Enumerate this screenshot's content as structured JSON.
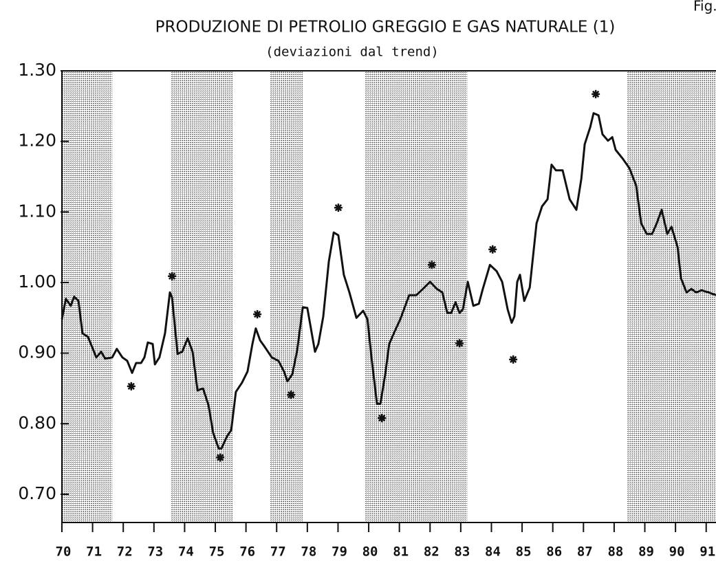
{
  "chart_data": {
    "type": "line",
    "title": "PRODUZIONE DI PETROLIO GREGGIO E GAS NATURALE (1)",
    "subtitle": "(deviazioni dal trend)",
    "annotation": "Fig.",
    "color": "#111111",
    "xlim": [
      70,
      91.32
    ],
    "ylim": [
      0.66,
      1.3
    ],
    "xticks": [
      70,
      71,
      72,
      73,
      74,
      75,
      76,
      77,
      78,
      79,
      80,
      81,
      82,
      83,
      84,
      85,
      86,
      87,
      88,
      89,
      90,
      91
    ],
    "yticks": [
      {
        "value": 0.7,
        "label": "0.70"
      },
      {
        "value": 0.8,
        "label": "0.80"
      },
      {
        "value": 0.9,
        "label": "0.90"
      },
      {
        "value": 1.0,
        "label": "1.00"
      },
      {
        "value": 1.1,
        "label": "1.10"
      },
      {
        "value": 1.2,
        "label": "1.20"
      },
      {
        "value": 1.3,
        "label": "1.30"
      }
    ],
    "shaded_periods": [
      [
        70.0,
        71.64
      ],
      [
        73.54,
        75.56
      ],
      [
        76.79,
        77.85
      ],
      [
        79.87,
        83.21
      ],
      [
        88.43,
        91.32
      ]
    ],
    "x": [
      70.0,
      70.13,
      70.29,
      70.4,
      70.54,
      70.67,
      70.85,
      71.12,
      71.28,
      71.41,
      71.64,
      71.79,
      71.97,
      72.13,
      72.29,
      72.42,
      72.58,
      72.69,
      72.8,
      72.96,
      73.03,
      73.18,
      73.36,
      73.52,
      73.59,
      73.77,
      73.92,
      74.1,
      74.26,
      74.42,
      74.6,
      74.78,
      74.93,
      75.11,
      75.2,
      75.38,
      75.52,
      75.67,
      75.87,
      76.05,
      76.21,
      76.32,
      76.46,
      76.61,
      76.84,
      77.06,
      77.24,
      77.35,
      77.51,
      77.67,
      77.85,
      78.0,
      78.25,
      78.36,
      78.52,
      78.7,
      78.86,
      79.01,
      79.19,
      79.37,
      79.6,
      79.82,
      79.96,
      80.09,
      80.27,
      80.38,
      80.54,
      80.67,
      80.87,
      81.03,
      81.32,
      81.55,
      81.77,
      82.0,
      82.22,
      82.4,
      82.56,
      82.69,
      82.83,
      82.96,
      83.07,
      83.23,
      83.41,
      83.59,
      83.72,
      83.95,
      84.17,
      84.35,
      84.53,
      84.66,
      84.75,
      84.84,
      84.93,
      85.07,
      85.25,
      85.47,
      85.65,
      85.83,
      85.96,
      86.1,
      86.32,
      86.55,
      86.77,
      86.93,
      87.04,
      87.22,
      87.33,
      87.49,
      87.62,
      87.8,
      87.94,
      88.05,
      88.27,
      88.5,
      88.72,
      88.88,
      89.06,
      89.24,
      89.39,
      89.55,
      89.73,
      89.87,
      90.07,
      90.18,
      90.36,
      90.52,
      90.67,
      90.85,
      91.08,
      91.32
    ],
    "values": [
      0.948,
      0.977,
      0.967,
      0.98,
      0.974,
      0.928,
      0.923,
      0.894,
      0.902,
      0.892,
      0.894,
      0.906,
      0.894,
      0.889,
      0.872,
      0.886,
      0.886,
      0.894,
      0.915,
      0.913,
      0.884,
      0.894,
      0.928,
      0.986,
      0.979,
      0.899,
      0.902,
      0.921,
      0.902,
      0.847,
      0.85,
      0.826,
      0.787,
      0.765,
      0.765,
      0.782,
      0.791,
      0.845,
      0.858,
      0.874,
      0.913,
      0.935,
      0.918,
      0.909,
      0.894,
      0.889,
      0.874,
      0.86,
      0.87,
      0.904,
      0.965,
      0.964,
      0.902,
      0.913,
      0.952,
      1.03,
      1.071,
      1.067,
      1.011,
      0.986,
      0.95,
      0.96,
      0.948,
      0.894,
      0.828,
      0.828,
      0.87,
      0.913,
      0.933,
      0.948,
      0.982,
      0.982,
      0.991,
      1.001,
      0.991,
      0.986,
      0.957,
      0.957,
      0.972,
      0.957,
      0.962,
      1.001,
      0.967,
      0.97,
      0.991,
      1.025,
      1.016,
      1.001,
      0.962,
      0.943,
      0.952,
      1.001,
      1.011,
      0.974,
      0.993,
      1.084,
      1.108,
      1.118,
      1.167,
      1.159,
      1.159,
      1.118,
      1.103,
      1.147,
      1.196,
      1.22,
      1.24,
      1.237,
      1.21,
      1.201,
      1.206,
      1.188,
      1.176,
      1.162,
      1.137,
      1.084,
      1.069,
      1.069,
      1.084,
      1.103,
      1.069,
      1.079,
      1.05,
      1.006,
      0.986,
      0.991,
      0.986,
      0.989,
      0.986,
      0.982
    ],
    "turning_points": {
      "x": [
        72.26,
        73.59,
        75.16,
        76.37,
        77.47,
        79.01,
        80.43,
        82.06,
        82.96,
        84.04,
        84.71,
        87.4
      ],
      "values": [
        0.853,
        1.009,
        0.752,
        0.955,
        0.841,
        1.106,
        0.808,
        1.025,
        0.914,
        1.047,
        0.891,
        1.267
      ]
    }
  }
}
